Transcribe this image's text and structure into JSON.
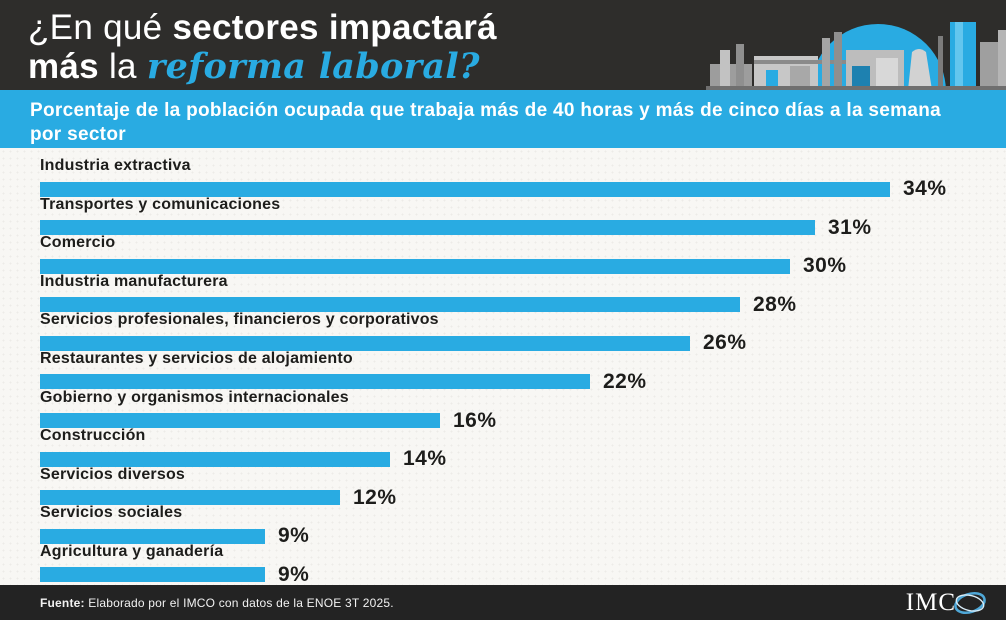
{
  "header": {
    "title": {
      "line1_regular": "¿En qué ",
      "line1_bold": "sectores impactará",
      "line2_bold": "más",
      "line2_regular": " la ",
      "line2_accent": "reforma laboral?"
    }
  },
  "subtitle": "Porcentaje de la población ocupada que trabaja más de 40 horas y más de cinco días a la semana por sector",
  "chart_data": {
    "type": "bar",
    "orientation": "horizontal",
    "title": "¿En qué sectores impactará más la reforma laboral?",
    "subtitle": "Porcentaje de la población ocupada que trabaja más de 40 horas y más de cinco días a la semana por sector",
    "categories": [
      "Industria extractiva",
      "Transportes y comunicaciones",
      "Comercio",
      "Industria manufacturera",
      "Servicios profesionales, financieros y corporativos",
      "Restaurantes y servicios de alojamiento",
      "Gobierno y organismos internacionales",
      "Construcción",
      "Servicios diversos",
      "Servicios sociales",
      "Agricultura y ganadería"
    ],
    "values": [
      34,
      31,
      30,
      28,
      26,
      22,
      16,
      14,
      12,
      9,
      9
    ],
    "value_suffix": "%",
    "xlim": [
      0,
      34
    ],
    "data_labels": true,
    "grid": false,
    "legend": false,
    "bar_color": "#29ABE2"
  },
  "footer": {
    "source_label": "Fuente:",
    "source_text": " Elaborado por el IMCO con datos de la ENOE 3T 2025.",
    "logo_text": "IMC",
    "logo_name": "IMCO"
  },
  "colors": {
    "accent": "#29ABE2",
    "header_bg": "#2E2D2B",
    "footer_bg": "#232323",
    "chart_bg": "#F8F7F4",
    "text_dark": "#1D1D1B"
  }
}
